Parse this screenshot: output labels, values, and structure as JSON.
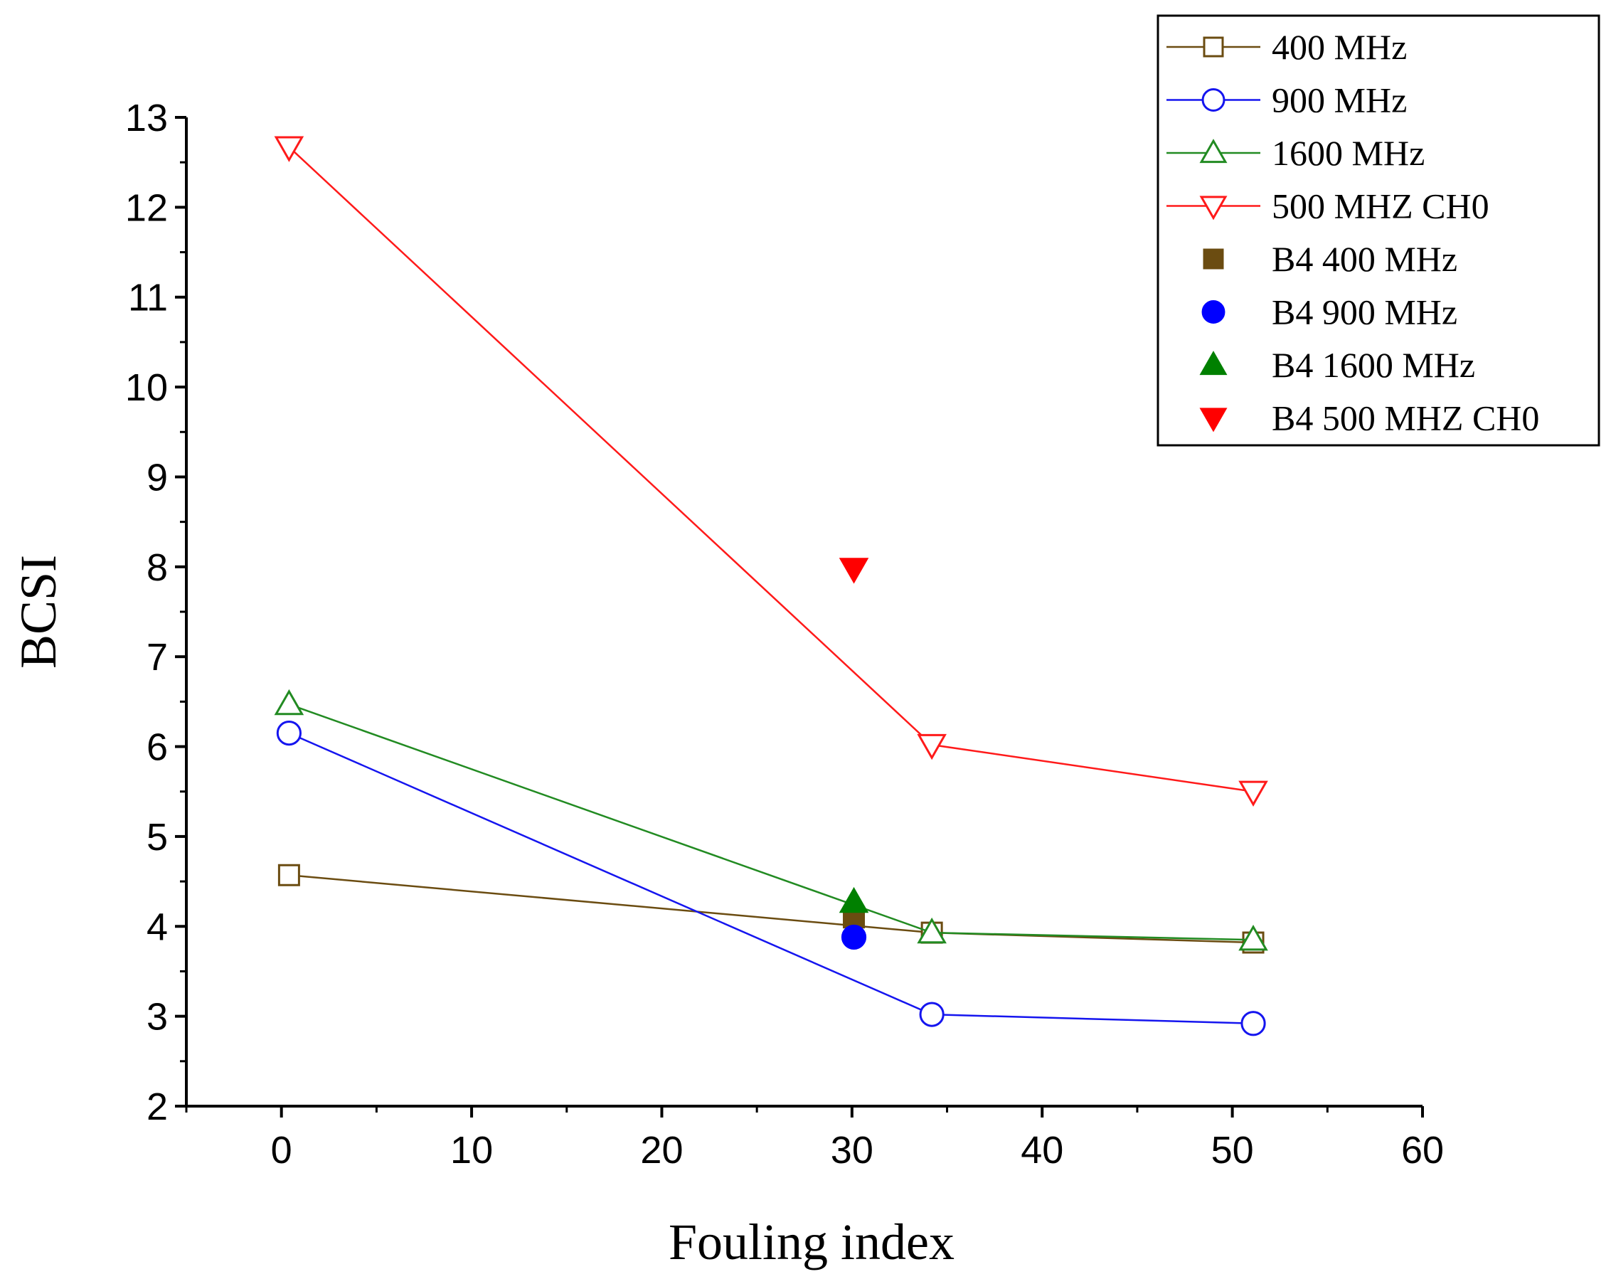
{
  "chart_data": {
    "type": "line",
    "title": "",
    "xlabel": "Fouling index",
    "ylabel": "BCSI",
    "xlim": [
      -5,
      60
    ],
    "ylim": [
      2,
      13
    ],
    "xticks": [
      0,
      10,
      20,
      30,
      40,
      50,
      60
    ],
    "yticks": [
      2,
      3,
      4,
      5,
      6,
      7,
      8,
      9,
      10,
      11,
      12,
      13
    ],
    "legend_position": "top-right",
    "series": [
      {
        "name": "400 MHz",
        "color": "#6b4c11",
        "marker": "square",
        "filled": false,
        "line": true,
        "x": [
          0.4,
          34.2,
          51.1
        ],
        "y": [
          4.57,
          3.93,
          3.82
        ]
      },
      {
        "name": "900 MHz",
        "color": "#1515ef",
        "marker": "circle",
        "filled": false,
        "line": true,
        "x": [
          0.4,
          34.2,
          51.1
        ],
        "y": [
          6.15,
          3.02,
          2.92
        ]
      },
      {
        "name": "1600 MHz",
        "color": "#228b22",
        "marker": "triangle-up",
        "filled": false,
        "line": true,
        "x": [
          0.4,
          34.2,
          51.1
        ],
        "y": [
          6.47,
          3.93,
          3.85
        ]
      },
      {
        "name": "500 MHZ CH0",
        "color": "#ff1a1a",
        "marker": "triangle-down",
        "filled": false,
        "line": true,
        "x": [
          0.4,
          34.2,
          51.1
        ],
        "y": [
          12.67,
          6.02,
          5.5
        ]
      },
      {
        "name": "B4 400 MHz",
        "color": "#6b4c11",
        "marker": "square",
        "filled": true,
        "line": false,
        "x": [
          30.1
        ],
        "y": [
          4.1
        ]
      },
      {
        "name": "B4 900 MHz",
        "color": "#0000ff",
        "marker": "circle",
        "filled": true,
        "line": false,
        "x": [
          30.1
        ],
        "y": [
          3.88
        ]
      },
      {
        "name": "B4 1600 MHz",
        "color": "#008000",
        "marker": "triangle-up",
        "filled": true,
        "line": false,
        "x": [
          30.1
        ],
        "y": [
          4.27
        ]
      },
      {
        "name": "B4 500 MHZ CH0",
        "color": "#ff0000",
        "marker": "triangle-down",
        "filled": true,
        "line": false,
        "x": [
          30.1
        ],
        "y": [
          7.98
        ]
      }
    ]
  }
}
